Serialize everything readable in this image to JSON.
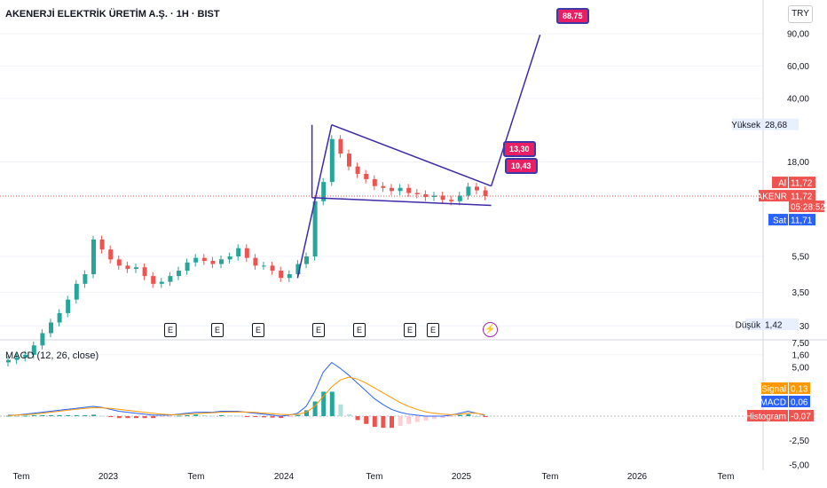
{
  "header": {
    "title": "AKENERJİ ELEKTRİK ÜRETİM A.Ş. · 1H · BIST",
    "currency": "TRY",
    "indicator_title": "MACD (12, 26, close)"
  },
  "price_scale": {
    "ticks": [
      "90,00",
      "60,00",
      "40,00",
      "18,00",
      "5,50",
      "3,50",
      "2,30",
      "1,60"
    ],
    "high_label": "Yüksek",
    "high_value": "28,68",
    "low_label": "Düşük",
    "low_value": "1,42",
    "bid_label": "Al",
    "bid_value": "11,72",
    "symbol_label": "AKENR",
    "last_value": "11,72",
    "countdown": "05:28:52",
    "ask_label": "Sat",
    "ask_value": "11,71"
  },
  "macd_scale": {
    "ticks": [
      "7,50",
      "5,00",
      "-2,50",
      "-5,00"
    ],
    "signal_label": "Signal",
    "signal_value": "0,13",
    "macd_label": "MACD",
    "macd_value": "0,06",
    "hist_label": "Histogram",
    "hist_value": "-0,07"
  },
  "time_axis": [
    "Tem",
    "2023",
    "Tem",
    "2024",
    "Tem",
    "2025",
    "Tem",
    "2026",
    "Tem"
  ],
  "event_markers": [
    "E",
    "E",
    "E",
    "E",
    "E",
    "E",
    "E"
  ],
  "dividend_icon": "lightning-bolt-icon",
  "annotations": {
    "target_label": "88,75",
    "upper_label": "13,30",
    "lower_label": "10,43"
  },
  "colors": {
    "up": "#26a69a",
    "down": "#ef5350",
    "drawing": "#3f2aa8",
    "label_bg": "#e91e63",
    "macd_line": "#2962ff",
    "signal_line": "#ff9800",
    "last_price_line": "#ef5350"
  },
  "chart_data": [
    {
      "type": "candlestick",
      "title": "AKENERJİ ELEKTRİK ÜRETİM A.Ş. · 1H · BIST",
      "scale": "log",
      "x_period": "monthly",
      "close": [
        1.5,
        1.55,
        1.6,
        1.8,
        2.1,
        2.4,
        2.7,
        3.2,
        3.9,
        4.4,
        6.8,
        6.0,
        5.3,
        4.9,
        4.7,
        4.8,
        4.3,
        3.9,
        4.0,
        4.3,
        4.6,
        5.1,
        5.4,
        5.2,
        5.0,
        5.3,
        5.5,
        6.1,
        5.4,
        4.9,
        4.9,
        4.6,
        4.2,
        4.4,
        5.0,
        5.5,
        11.0,
        14.0,
        24.0,
        20.0,
        17.0,
        15.5,
        14.5,
        13.3,
        13.0,
        12.5,
        13.0,
        12.2,
        12.0,
        11.6,
        11.8,
        11.2,
        11.0,
        11.8,
        13.2,
        12.6,
        11.72
      ],
      "ylim": [
        1.4,
        100
      ],
      "last": 11.72,
      "high": 28.68,
      "low": 1.42,
      "annotations": [
        88.75,
        13.3,
        10.43
      ]
    },
    {
      "type": "bar",
      "title": "MACD (12, 26, close)",
      "series": [
        {
          "name": "MACD",
          "values": [
            0.1,
            0.1,
            0.2,
            0.3,
            0.4,
            0.5,
            0.6,
            0.7,
            0.8,
            0.9,
            1.0,
            0.9,
            0.7,
            0.5,
            0.4,
            0.3,
            0.2,
            0.1,
            0.1,
            0.1,
            0.2,
            0.3,
            0.4,
            0.4,
            0.4,
            0.5,
            0.5,
            0.5,
            0.4,
            0.3,
            0.2,
            0.1,
            0.0,
            0.1,
            0.3,
            1.0,
            2.5,
            4.5,
            5.5,
            4.9,
            4.2,
            3.4,
            2.6,
            1.8,
            1.2,
            0.7,
            0.4,
            0.2,
            0.1,
            0.0,
            0.0,
            0.0,
            0.1,
            0.3,
            0.5,
            0.3,
            0.06
          ]
        },
        {
          "name": "Signal",
          "values": [
            0.05,
            0.1,
            0.15,
            0.2,
            0.3,
            0.4,
            0.5,
            0.6,
            0.7,
            0.8,
            0.85,
            0.85,
            0.8,
            0.7,
            0.6,
            0.5,
            0.4,
            0.3,
            0.2,
            0.15,
            0.15,
            0.2,
            0.25,
            0.3,
            0.35,
            0.4,
            0.42,
            0.44,
            0.42,
            0.38,
            0.32,
            0.25,
            0.18,
            0.15,
            0.18,
            0.4,
            1.0,
            2.0,
            3.0,
            3.7,
            4.0,
            3.8,
            3.4,
            2.9,
            2.4,
            1.9,
            1.4,
            1.0,
            0.7,
            0.45,
            0.3,
            0.2,
            0.15,
            0.18,
            0.3,
            0.3,
            0.13
          ]
        },
        {
          "name": "Histogram",
          "values": [
            0.05,
            0.0,
            0.05,
            0.1,
            0.1,
            0.1,
            0.1,
            0.1,
            0.1,
            0.1,
            0.15,
            0.05,
            -0.1,
            -0.2,
            -0.2,
            -0.2,
            -0.2,
            -0.2,
            -0.1,
            -0.05,
            0.05,
            0.1,
            0.15,
            0.1,
            0.05,
            0.1,
            0.08,
            0.06,
            -0.02,
            -0.08,
            -0.12,
            -0.15,
            -0.18,
            -0.05,
            0.12,
            0.6,
            1.5,
            2.5,
            2.5,
            1.2,
            0.2,
            -0.4,
            -0.8,
            -1.1,
            -1.2,
            -1.2,
            -1.0,
            -0.8,
            -0.6,
            -0.45,
            -0.3,
            -0.2,
            -0.05,
            0.12,
            0.2,
            0.0,
            -0.07
          ]
        }
      ],
      "ylim": [
        -5,
        7.5
      ]
    }
  ]
}
